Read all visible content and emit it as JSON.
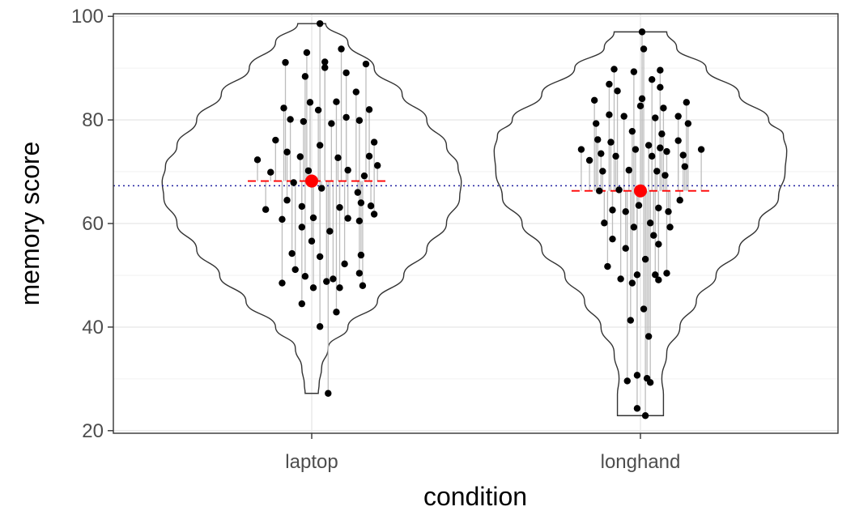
{
  "chart_data": {
    "type": "violin",
    "title": "",
    "xlabel": "condition",
    "ylabel": "memory score",
    "ylim": [
      19.5,
      100.5
    ],
    "yticks": [
      "20",
      "40",
      "60",
      "80",
      "100"
    ],
    "ytick_values": [
      20,
      40,
      60,
      80,
      100
    ],
    "grid": true,
    "categories": [
      "laptop",
      "longhand"
    ],
    "grand_mean": 67.3,
    "group_means": [
      68.2,
      66.3
    ],
    "ranges": [
      [
        27.2,
        98.6
      ],
      [
        22.9,
        97.0
      ]
    ],
    "points": [
      [
        [
          0.0,
          67.6
        ],
        [
          0.0,
          67.6
        ],
        [
          -0.33,
          72.3
        ],
        [
          -0.28,
          62.7
        ],
        [
          -0.25,
          69.9
        ],
        [
          -0.22,
          76.1
        ],
        [
          -0.18,
          48.5
        ],
        [
          -0.18,
          60.8
        ],
        [
          -0.17,
          82.3
        ],
        [
          -0.16,
          91.1
        ],
        [
          -0.15,
          64.5
        ],
        [
          -0.15,
          73.8
        ],
        [
          -0.13,
          80.1
        ],
        [
          -0.12,
          54.2
        ],
        [
          -0.11,
          67.9
        ],
        [
          -0.1,
          51.1
        ],
        [
          -0.07,
          72.9
        ],
        [
          -0.06,
          44.5
        ],
        [
          -0.06,
          59.3
        ],
        [
          -0.06,
          63.3
        ],
        [
          -0.05,
          79.7
        ],
        [
          -0.04,
          88.4
        ],
        [
          -0.04,
          49.8
        ],
        [
          -0.03,
          93.0
        ],
        [
          -0.02,
          70.2
        ],
        [
          -0.01,
          83.4
        ],
        [
          0.0,
          56.6
        ],
        [
          0.01,
          61.1
        ],
        [
          0.01,
          47.6
        ],
        [
          0.04,
          81.9
        ],
        [
          0.05,
          40.1
        ],
        [
          0.05,
          75.1
        ],
        [
          0.05,
          53.6
        ],
        [
          0.05,
          98.6
        ],
        [
          0.06,
          66.8
        ],
        [
          0.08,
          90.1
        ],
        [
          0.08,
          91.2
        ],
        [
          0.09,
          48.8
        ],
        [
          0.1,
          27.2
        ],
        [
          0.11,
          58.5
        ],
        [
          0.12,
          79.3
        ],
        [
          0.13,
          49.3
        ],
        [
          0.15,
          42.9
        ],
        [
          0.15,
          83.5
        ],
        [
          0.16,
          72.7
        ],
        [
          0.17,
          47.6
        ],
        [
          0.17,
          63.1
        ],
        [
          0.18,
          93.7
        ],
        [
          0.2,
          52.2
        ],
        [
          0.21,
          89.1
        ],
        [
          0.21,
          80.5
        ],
        [
          0.22,
          61.0
        ],
        [
          0.22,
          70.3
        ],
        [
          0.27,
          85.4
        ],
        [
          0.28,
          66.0
        ],
        [
          0.29,
          50.4
        ],
        [
          0.29,
          60.5
        ],
        [
          0.29,
          79.9
        ],
        [
          0.3,
          53.9
        ],
        [
          0.3,
          64.0
        ],
        [
          0.31,
          48.0
        ],
        [
          0.32,
          69.2
        ],
        [
          0.33,
          90.8
        ],
        [
          0.35,
          82.0
        ],
        [
          0.35,
          73.0
        ],
        [
          0.36,
          63.4
        ],
        [
          0.38,
          75.7
        ],
        [
          0.38,
          61.8
        ],
        [
          0.4,
          71.2
        ]
      ],
      [
        [
          -0.36,
          74.3
        ],
        [
          -0.31,
          72.2
        ],
        [
          -0.28,
          83.8
        ],
        [
          -0.27,
          79.3
        ],
        [
          -0.26,
          76.2
        ],
        [
          -0.25,
          66.3
        ],
        [
          -0.24,
          73.5
        ],
        [
          -0.23,
          70.1
        ],
        [
          -0.22,
          60.1
        ],
        [
          -0.2,
          51.7
        ],
        [
          -0.19,
          81.0
        ],
        [
          -0.19,
          86.9
        ],
        [
          -0.18,
          75.7
        ],
        [
          -0.17,
          62.6
        ],
        [
          -0.17,
          57.0
        ],
        [
          -0.16,
          89.8
        ],
        [
          -0.15,
          73.0
        ],
        [
          -0.14,
          85.6
        ],
        [
          -0.13,
          66.5
        ],
        [
          -0.12,
          49.3
        ],
        [
          -0.1,
          80.7
        ],
        [
          -0.09,
          62.3
        ],
        [
          -0.09,
          55.2
        ],
        [
          -0.08,
          29.6
        ],
        [
          -0.07,
          70.3
        ],
        [
          -0.06,
          41.3
        ],
        [
          -0.05,
          48.5
        ],
        [
          -0.05,
          77.8
        ],
        [
          -0.04,
          59.3
        ],
        [
          -0.04,
          89.3
        ],
        [
          -0.03,
          74.3
        ],
        [
          -0.02,
          24.3
        ],
        [
          -0.02,
          30.7
        ],
        [
          -0.02,
          50.1
        ],
        [
          -0.01,
          63.5
        ],
        [
          0.0,
          66.3
        ],
        [
          0.0,
          82.7
        ],
        [
          0.01,
          97.0
        ],
        [
          0.01,
          84.1
        ],
        [
          0.02,
          43.5
        ],
        [
          0.02,
          93.7
        ],
        [
          0.03,
          53.1
        ],
        [
          0.03,
          22.9
        ],
        [
          0.04,
          30.1
        ],
        [
          0.05,
          38.2
        ],
        [
          0.05,
          75.1
        ],
        [
          0.06,
          60.1
        ],
        [
          0.06,
          29.3
        ],
        [
          0.07,
          87.8
        ],
        [
          0.07,
          73.0
        ],
        [
          0.08,
          57.7
        ],
        [
          0.09,
          80.4
        ],
        [
          0.09,
          50.1
        ],
        [
          0.1,
          70.1
        ],
        [
          0.11,
          49.1
        ],
        [
          0.11,
          56.0
        ],
        [
          0.11,
          63.0
        ],
        [
          0.12,
          74.6
        ],
        [
          0.12,
          86.3
        ],
        [
          0.12,
          89.6
        ],
        [
          0.13,
          77.3
        ],
        [
          0.14,
          82.3
        ],
        [
          0.15,
          69.3
        ],
        [
          0.16,
          73.9
        ],
        [
          0.16,
          50.4
        ],
        [
          0.17,
          62.3
        ],
        [
          0.18,
          59.3
        ],
        [
          0.23,
          80.7
        ],
        [
          0.23,
          76.0
        ],
        [
          0.24,
          64.5
        ],
        [
          0.26,
          73.2
        ],
        [
          0.27,
          71.0
        ],
        [
          0.28,
          83.4
        ],
        [
          0.29,
          79.3
        ],
        [
          0.37,
          74.3
        ]
      ]
    ]
  }
}
